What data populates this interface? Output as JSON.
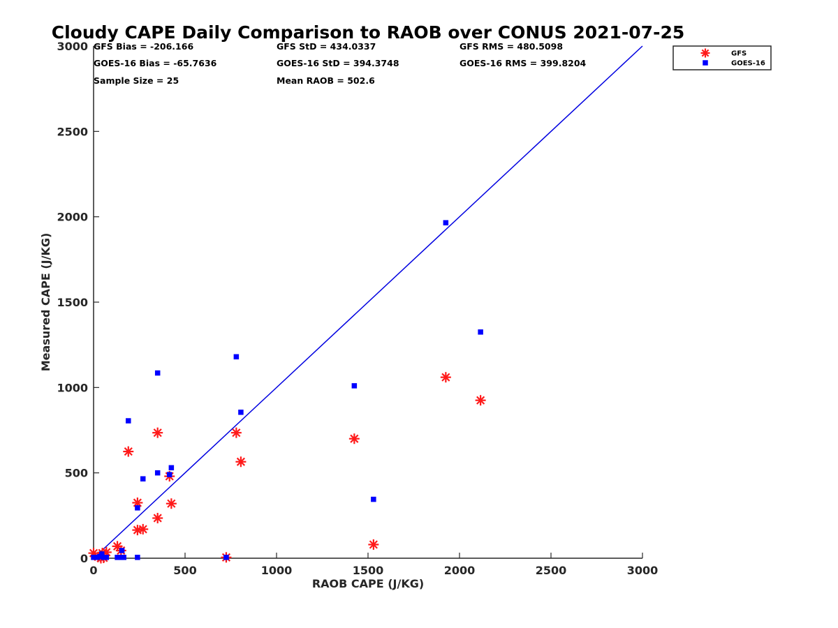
{
  "chart_data": {
    "type": "scatter",
    "title": "Cloudy CAPE Daily Comparison to RAOB over CONUS 2021-07-25",
    "xlabel": "RAOB CAPE (J/KG)",
    "ylabel": "Measured CAPE (J/KG)",
    "xlim": [
      0,
      3000
    ],
    "ylim": [
      0,
      3000
    ],
    "xticks": [
      "0",
      "500",
      "1000",
      "1500",
      "2000",
      "2500",
      "3000"
    ],
    "yticks": [
      "0",
      "500",
      "1000",
      "1500",
      "2000",
      "2500",
      "3000"
    ],
    "grid": false,
    "legend_position": "top-right, outside plot",
    "stats": [
      {
        "text": "GFS Bias = -206.166",
        "col": 0,
        "row": 0
      },
      {
        "text": "GFS StD = 434.0337",
        "col": 1,
        "row": 0
      },
      {
        "text": "GFS RMS = 480.5098",
        "col": 2,
        "row": 0
      },
      {
        "text": "GOES-16 Bias = -65.7636",
        "col": 0,
        "row": 1
      },
      {
        "text": "GOES-16 StD = 394.3748",
        "col": 1,
        "row": 1
      },
      {
        "text": "GOES-16 RMS = 399.8204",
        "col": 2,
        "row": 1
      },
      {
        "text": "Sample Size = 25",
        "col": 0,
        "row": 2
      },
      {
        "text": "Mean RAOB = 502.6",
        "col": 1,
        "row": 2
      }
    ],
    "reference_line": {
      "x": [
        0,
        3000
      ],
      "y": [
        0,
        3000
      ],
      "color": "#0000e0"
    },
    "series": [
      {
        "name": "GFS",
        "marker": "asterisk",
        "color": "#ff1a1a",
        "points": [
          [
            0,
            30
          ],
          [
            25,
            8
          ],
          [
            40,
            0
          ],
          [
            48,
            30
          ],
          [
            55,
            2
          ],
          [
            70,
            35
          ],
          [
            130,
            70
          ],
          [
            150,
            45
          ],
          [
            190,
            625
          ],
          [
            240,
            325
          ],
          [
            240,
            165
          ],
          [
            270,
            170
          ],
          [
            350,
            735
          ],
          [
            350,
            235
          ],
          [
            415,
            480
          ],
          [
            425,
            320
          ],
          [
            725,
            5
          ],
          [
            780,
            735
          ],
          [
            805,
            565
          ],
          [
            1425,
            700
          ],
          [
            1530,
            80
          ],
          [
            1925,
            1060
          ],
          [
            2115,
            925
          ]
        ]
      },
      {
        "name": "GOES-16",
        "marker": "square",
        "color": "#0000ff",
        "points": [
          [
            0,
            5
          ],
          [
            20,
            5
          ],
          [
            35,
            10
          ],
          [
            45,
            25
          ],
          [
            55,
            5
          ],
          [
            70,
            5
          ],
          [
            130,
            5
          ],
          [
            150,
            5
          ],
          [
            155,
            45
          ],
          [
            165,
            5
          ],
          [
            190,
            805
          ],
          [
            240,
            295
          ],
          [
            240,
            5
          ],
          [
            270,
            465
          ],
          [
            350,
            1085
          ],
          [
            350,
            500
          ],
          [
            415,
            490
          ],
          [
            425,
            530
          ],
          [
            725,
            5
          ],
          [
            780,
            1180
          ],
          [
            805,
            855
          ],
          [
            1425,
            1010
          ],
          [
            1530,
            345
          ],
          [
            1925,
            1965
          ],
          [
            2115,
            1325
          ]
        ]
      }
    ]
  }
}
